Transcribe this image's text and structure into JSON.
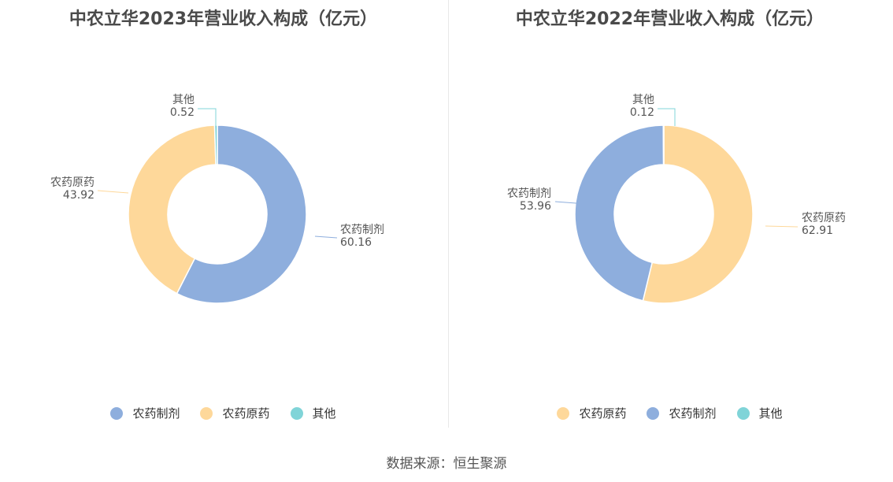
{
  "chart_data": [
    {
      "type": "pie",
      "title": "中农立华2023年营业收入构成（亿元）",
      "series": [
        {
          "name": "农药制剂",
          "value": 60.16,
          "color": "#8eaedd"
        },
        {
          "name": "农药原药",
          "value": 43.92,
          "color": "#fed89a"
        },
        {
          "name": "其他",
          "value": 0.52,
          "color": "#80d4d8"
        }
      ],
      "legend": [
        "农药制剂",
        "农药原药",
        "其他"
      ],
      "legend_position": "bottom"
    },
    {
      "type": "pie",
      "title": "中农立华2022年营业收入构成（亿元）",
      "series": [
        {
          "name": "农药原药",
          "value": 62.91,
          "color": "#fed89a"
        },
        {
          "name": "农药制剂",
          "value": 53.96,
          "color": "#8eaedd"
        },
        {
          "name": "其他",
          "value": 0.12,
          "color": "#80d4d8"
        }
      ],
      "legend": [
        "农药原药",
        "农药制剂",
        "其他"
      ],
      "legend_position": "bottom"
    }
  ],
  "source": "数据来源：恒生聚源"
}
